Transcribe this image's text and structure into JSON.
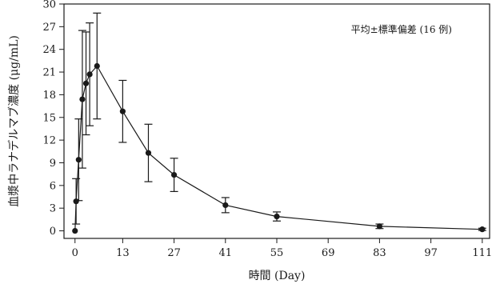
{
  "chart_data": {
    "type": "line",
    "xlabel": "時間 (Day)",
    "ylabel": "血漿中ラナデルマブ濃度 (μg/mL)",
    "annotation": "平均±標準偏差 (16 例)",
    "xlim": [
      -3,
      113
    ],
    "ylim": [
      -1,
      30
    ],
    "x_ticks": [
      0,
      13,
      27,
      41,
      55,
      69,
      83,
      97,
      111
    ],
    "y_ticks": [
      0,
      3,
      6,
      9,
      12,
      15,
      18,
      21,
      24,
      27,
      30
    ],
    "grid": false,
    "legend": "none",
    "series": [
      {
        "x": [
          0,
          0.3,
          1,
          2,
          3,
          4,
          6,
          13,
          20,
          27,
          41,
          55,
          83,
          111
        ],
        "y": [
          0,
          3.9,
          9.4,
          17.4,
          19.5,
          20.7,
          21.8,
          15.8,
          10.3,
          7.4,
          3.4,
          1.9,
          0.6,
          0.2
        ],
        "err": [
          0,
          3.0,
          5.4,
          9.1,
          6.8,
          6.8,
          7.0,
          4.1,
          3.8,
          2.2,
          1.0,
          0.6,
          0.3,
          0.15
        ]
      }
    ],
    "colors": {
      "line": "#1a1a1a",
      "marker": "#1a1a1a",
      "axis": "#1a1a1a"
    }
  }
}
